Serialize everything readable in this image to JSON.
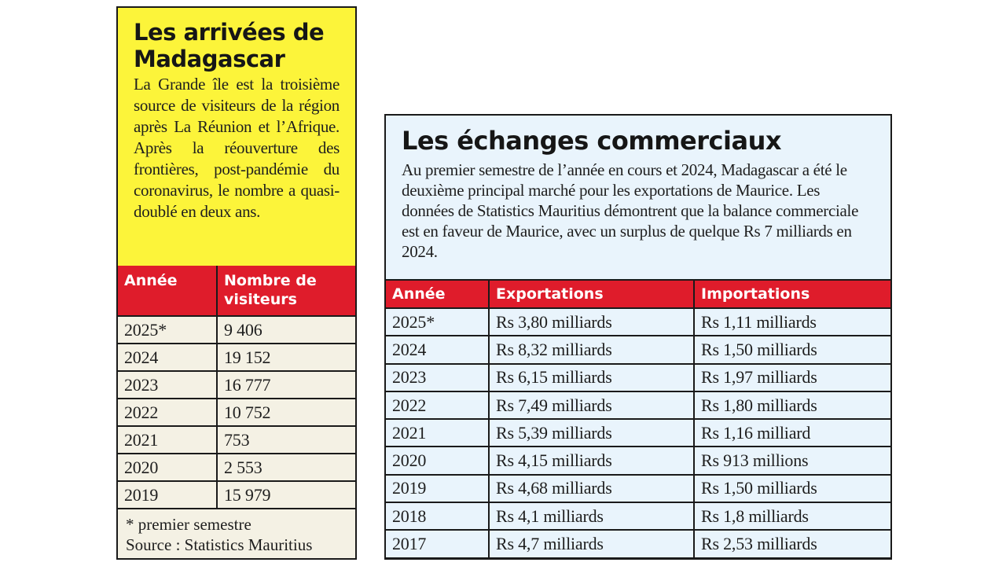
{
  "arrivees": {
    "title": "Les arrivées de Madagascar",
    "description": "La Grande île est la troisième source de visiteurs de la région après La Réunion et l’Afrique. Après la réouverture des frontières, post-pandémie du coronavirus, le nombre a quasi-doublé en deux ans.",
    "columns": [
      "Année",
      "Nombre de visiteurs"
    ],
    "rows": [
      [
        "2025*",
        "9 406"
      ],
      [
        "2024",
        "19 152"
      ],
      [
        "2023",
        "16 777"
      ],
      [
        "2022",
        "10 752"
      ],
      [
        "2021",
        "753"
      ],
      [
        "2020",
        "2 553"
      ],
      [
        "2019",
        "15 979"
      ]
    ],
    "footnote": "* premier semestre",
    "source": "Source : Statistics Mauritius"
  },
  "echanges": {
    "title": "Les échanges commerciaux",
    "description": "Au premier semestre de l’année en cours et 2024, Madagascar a été le deuxième principal marché pour les exportations de Maurice. Les données de Statistics Mauritius démontrent que la balance commerciale est en faveur de Maurice, avec un surplus de quelque Rs 7 milliards en 2024.",
    "columns": [
      "Année",
      "Exportations",
      "Importations"
    ],
    "rows": [
      [
        "2025*",
        "Rs 3,80 milliards",
        "Rs 1,11 milliards"
      ],
      [
        "2024",
        "Rs 8,32 milliards",
        "Rs 1,50 milliards"
      ],
      [
        "2023",
        "Rs 6,15 milliards",
        "Rs 1,97 milliards"
      ],
      [
        "2022",
        "Rs 7,49 milliards",
        "Rs 1,80 milliards"
      ],
      [
        "2021",
        "Rs 5,39 milliards",
        "Rs 1,16 milliard"
      ],
      [
        "2020",
        "Rs 4,15 milliards",
        "Rs 913 millions"
      ],
      [
        "2019",
        "Rs 4,68 milliards",
        "Rs 1,50 milliards"
      ],
      [
        "2018",
        "Rs 4,1 milliards",
        "Rs 1,8 milliards"
      ],
      [
        "2017",
        "Rs 4,7 milliards",
        "Rs 2,53 milliards"
      ]
    ]
  },
  "colors": {
    "yellow": "#fcf43a",
    "red": "#df1c2b",
    "light_blue": "#e9f4fc",
    "cream": "#f4f1e4"
  }
}
